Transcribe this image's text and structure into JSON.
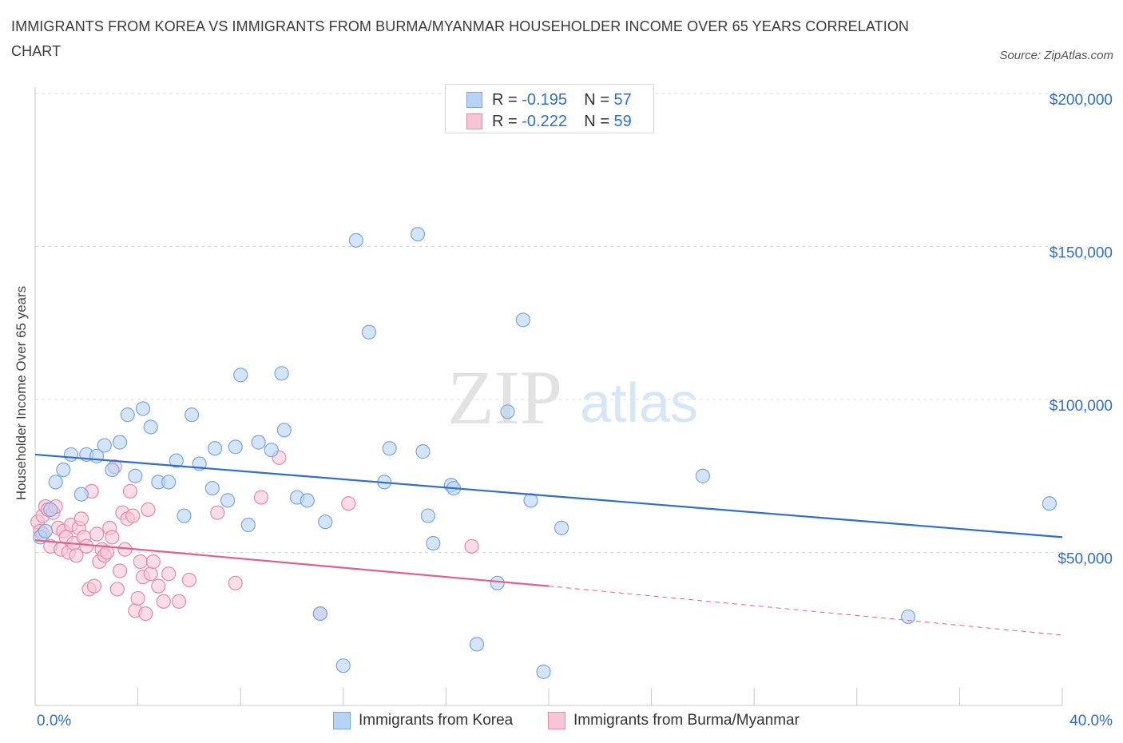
{
  "header": {
    "title": "IMMIGRANTS FROM KOREA VS IMMIGRANTS FROM BURMA/MYANMAR HOUSEHOLDER INCOME OVER 65 YEARS CORRELATION CHART",
    "source": "Source: ZipAtlas.com"
  },
  "watermark": {
    "zip": "ZIP",
    "atlas": "atlas"
  },
  "legend": {
    "r_label": "R =",
    "n_label": "N =",
    "korea": {
      "r": "-0.195",
      "n": "57"
    },
    "burma": {
      "r": "-0.222",
      "n": "59"
    }
  },
  "colors": {
    "korea_fill": "#b8d3f5",
    "korea_stroke": "#7aa6de",
    "korea_line": "#2f6fc9",
    "burma_fill": "#f7c6d6",
    "burma_stroke": "#e68aaa",
    "burma_line": "#e0628c",
    "tick_label": "#2f6fc9"
  },
  "chart_data": {
    "type": "scatter",
    "title": "IMMIGRANTS FROM KOREA VS IMMIGRANTS FROM BURMA/MYANMAR HOUSEHOLDER INCOME OVER 65 YEARS CORRELATION CHART",
    "xlabel": "",
    "ylabel": "Householder Income Over 65 years",
    "xlim": [
      0,
      40
    ],
    "ylim": [
      0,
      200000
    ],
    "x_tick_labels": [
      "0.0%",
      "40.0%"
    ],
    "y_ticks": [
      50000,
      100000,
      150000,
      200000
    ],
    "y_tick_labels": [
      "$50,000",
      "$100,000",
      "$150,000",
      "$200,000"
    ],
    "grid": true,
    "legend_position": "top-center",
    "series": [
      {
        "name": "Immigrants from Korea",
        "points": [
          [
            0.2,
            55000
          ],
          [
            0.4,
            57000
          ],
          [
            0.6,
            64000
          ],
          [
            0.8,
            73000
          ],
          [
            1.1,
            77000
          ],
          [
            1.4,
            82000
          ],
          [
            1.8,
            69000
          ],
          [
            2.0,
            82000
          ],
          [
            2.4,
            81500
          ],
          [
            2.7,
            85000
          ],
          [
            3.0,
            77000
          ],
          [
            3.3,
            86000
          ],
          [
            3.6,
            95000
          ],
          [
            3.9,
            75000
          ],
          [
            4.2,
            97000
          ],
          [
            4.5,
            91000
          ],
          [
            4.8,
            73000
          ],
          [
            5.2,
            73000
          ],
          [
            5.5,
            80000
          ],
          [
            5.8,
            62000
          ],
          [
            6.1,
            95000
          ],
          [
            6.4,
            79000
          ],
          [
            6.9,
            71000
          ],
          [
            7.0,
            84000
          ],
          [
            7.5,
            67000
          ],
          [
            7.8,
            84500
          ],
          [
            8.0,
            108000
          ],
          [
            8.3,
            59000
          ],
          [
            8.7,
            86000
          ],
          [
            9.2,
            83500
          ],
          [
            9.6,
            108500
          ],
          [
            9.7,
            90000
          ],
          [
            10.2,
            68000
          ],
          [
            10.6,
            67000
          ],
          [
            11.1,
            30000
          ],
          [
            11.3,
            60000
          ],
          [
            12.0,
            13000
          ],
          [
            12.5,
            152000
          ],
          [
            13.0,
            122000
          ],
          [
            13.6,
            73000
          ],
          [
            13.8,
            84000
          ],
          [
            14.9,
            154000
          ],
          [
            15.1,
            83000
          ],
          [
            15.3,
            62000
          ],
          [
            15.5,
            53000
          ],
          [
            16.2,
            72000
          ],
          [
            16.3,
            71000
          ],
          [
            17.2,
            20000
          ],
          [
            18.0,
            40000
          ],
          [
            18.4,
            96000
          ],
          [
            19.0,
            126000
          ],
          [
            19.3,
            67000
          ],
          [
            19.8,
            11000
          ],
          [
            20.5,
            58000
          ],
          [
            26.0,
            75000
          ],
          [
            34.0,
            29000
          ],
          [
            39.5,
            66000
          ]
        ]
      },
      {
        "name": "Immigrants from Burma/Myanmar",
        "points": [
          [
            0.1,
            60000
          ],
          [
            0.2,
            57000
          ],
          [
            0.3,
            62000
          ],
          [
            0.4,
            65000
          ],
          [
            0.5,
            64000
          ],
          [
            0.6,
            52000
          ],
          [
            0.7,
            63000
          ],
          [
            0.8,
            65000
          ],
          [
            0.9,
            58000
          ],
          [
            1.0,
            51000
          ],
          [
            1.1,
            57000
          ],
          [
            1.2,
            55000
          ],
          [
            1.3,
            50000
          ],
          [
            1.4,
            59000
          ],
          [
            1.5,
            53000
          ],
          [
            1.6,
            49000
          ],
          [
            1.7,
            58000
          ],
          [
            1.8,
            61000
          ],
          [
            1.9,
            55000
          ],
          [
            2.0,
            52000
          ],
          [
            2.1,
            38000
          ],
          [
            2.2,
            70000
          ],
          [
            2.3,
            39000
          ],
          [
            2.4,
            56000
          ],
          [
            2.5,
            47000
          ],
          [
            2.6,
            51000
          ],
          [
            2.7,
            49000
          ],
          [
            2.8,
            50000
          ],
          [
            2.9,
            58000
          ],
          [
            3.0,
            55000
          ],
          [
            3.1,
            78000
          ],
          [
            3.2,
            38000
          ],
          [
            3.3,
            44000
          ],
          [
            3.4,
            63000
          ],
          [
            3.5,
            51000
          ],
          [
            3.6,
            61000
          ],
          [
            3.7,
            70000
          ],
          [
            3.8,
            62000
          ],
          [
            3.9,
            31000
          ],
          [
            4.0,
            35000
          ],
          [
            4.1,
            47000
          ],
          [
            4.2,
            42000
          ],
          [
            4.3,
            30000
          ],
          [
            4.4,
            64000
          ],
          [
            4.5,
            43000
          ],
          [
            4.6,
            47000
          ],
          [
            4.8,
            39000
          ],
          [
            5.0,
            34000
          ],
          [
            5.2,
            43000
          ],
          [
            5.6,
            34000
          ],
          [
            6.0,
            41000
          ],
          [
            7.1,
            63000
          ],
          [
            7.8,
            40000
          ],
          [
            8.8,
            68000
          ],
          [
            9.5,
            81000
          ],
          [
            11.1,
            30000
          ],
          [
            12.2,
            66000
          ],
          [
            17.0,
            52000
          ],
          [
            0.3,
            56000
          ]
        ]
      }
    ],
    "trendlines": [
      {
        "series": "Immigrants from Korea",
        "from": [
          0,
          82000
        ],
        "to": [
          40,
          55000
        ],
        "style": "solid"
      },
      {
        "series": "Immigrants from Burma/Myanmar",
        "from": [
          0,
          54000
        ],
        "to": [
          20,
          39000
        ],
        "style": "solid"
      },
      {
        "series": "Immigrants from Burma/Myanmar",
        "from": [
          20,
          39000
        ],
        "to": [
          40,
          23000
        ],
        "style": "dashed"
      }
    ]
  }
}
